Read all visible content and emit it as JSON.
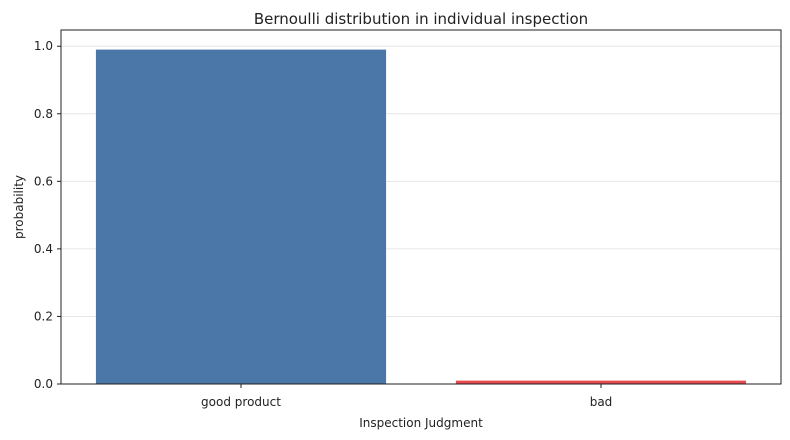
{
  "chart_data": {
    "type": "bar",
    "title": "Bernoulli distribution in individual inspection",
    "xlabel": "Inspection Judgment",
    "ylabel": "probability",
    "categories": [
      "good product",
      "bad"
    ],
    "values": [
      0.99,
      0.01
    ],
    "colors": [
      "#4a77a8",
      "#e5484d"
    ],
    "ylim": [
      0,
      1.0
    ],
    "yticks": [
      0.0,
      0.2,
      0.4,
      0.6,
      0.8,
      1.0
    ],
    "ytick_labels": [
      "0.0",
      "0.2",
      "0.4",
      "0.6",
      "0.8",
      "1.0"
    ],
    "grid": true,
    "legend": "none"
  }
}
